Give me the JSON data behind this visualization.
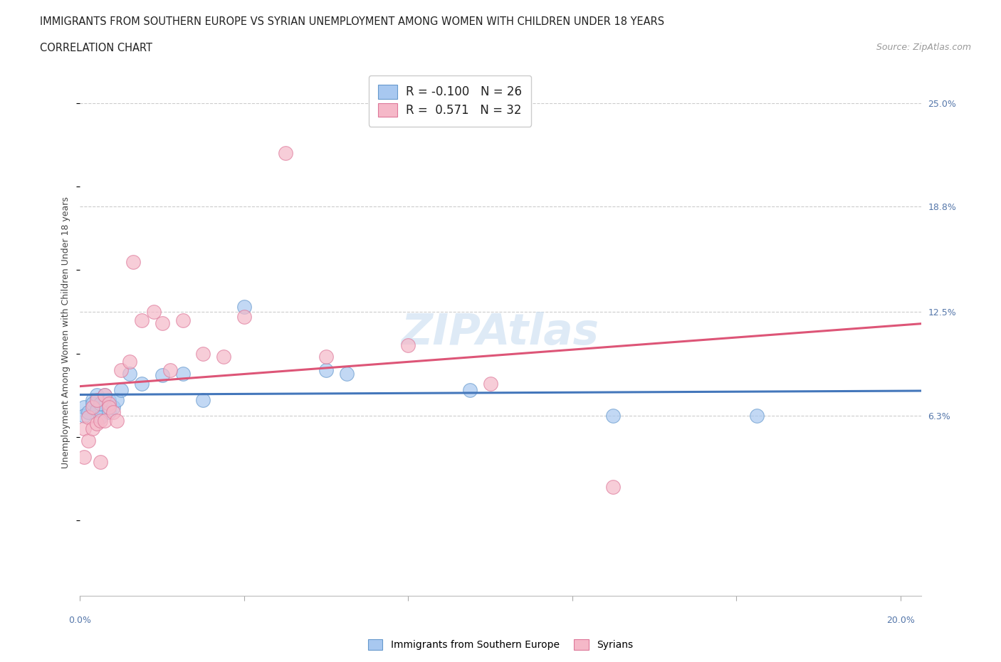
{
  "title_line1": "IMMIGRANTS FROM SOUTHERN EUROPE VS SYRIAN UNEMPLOYMENT AMONG WOMEN WITH CHILDREN UNDER 18 YEARS",
  "title_line2": "CORRELATION CHART",
  "source": "Source: ZipAtlas.com",
  "ylabel": "Unemployment Among Women with Children Under 18 years",
  "xlim": [
    0.0,
    0.205
  ],
  "ylim": [
    -0.045,
    0.27
  ],
  "ytick_vals": [
    0.063,
    0.125,
    0.188,
    0.25
  ],
  "ytick_labels": [
    "6.3%",
    "12.5%",
    "18.8%",
    "25.0%"
  ],
  "xtick_vals": [
    0.0,
    0.04,
    0.08,
    0.12,
    0.16,
    0.2
  ],
  "bg_color": "#ffffff",
  "grid_color": "#cccccc",
  "watermark": "ZIPAtlas",
  "blue_color": "#a8c8f0",
  "blue_edge": "#6699cc",
  "blue_line": "#4477bb",
  "pink_color": "#f5b8c8",
  "pink_edge": "#dd7799",
  "pink_line": "#dd5577",
  "series_blue": {
    "name": "Immigrants from Southern Europe",
    "R": -0.1,
    "N": 26,
    "x": [
      0.001,
      0.001,
      0.002,
      0.003,
      0.003,
      0.004,
      0.004,
      0.005,
      0.005,
      0.006,
      0.007,
      0.007,
      0.008,
      0.009,
      0.01,
      0.012,
      0.015,
      0.02,
      0.025,
      0.03,
      0.04,
      0.06,
      0.065,
      0.095,
      0.13,
      0.165
    ],
    "y": [
      0.068,
      0.063,
      0.065,
      0.072,
      0.07,
      0.066,
      0.075,
      0.062,
      0.07,
      0.075,
      0.065,
      0.072,
      0.068,
      0.072,
      0.078,
      0.088,
      0.082,
      0.087,
      0.088,
      0.072,
      0.128,
      0.09,
      0.088,
      0.078,
      0.063,
      0.063
    ]
  },
  "series_pink": {
    "name": "Syrians",
    "R": 0.571,
    "N": 32,
    "x": [
      0.001,
      0.001,
      0.002,
      0.002,
      0.003,
      0.003,
      0.004,
      0.004,
      0.005,
      0.005,
      0.006,
      0.006,
      0.007,
      0.007,
      0.008,
      0.009,
      0.01,
      0.012,
      0.013,
      0.015,
      0.018,
      0.02,
      0.022,
      0.025,
      0.03,
      0.035,
      0.04,
      0.05,
      0.06,
      0.08,
      0.1,
      0.13
    ],
    "y": [
      0.055,
      0.038,
      0.062,
      0.048,
      0.068,
      0.055,
      0.072,
      0.058,
      0.06,
      0.035,
      0.075,
      0.06,
      0.07,
      0.068,
      0.065,
      0.06,
      0.09,
      0.095,
      0.155,
      0.12,
      0.125,
      0.118,
      0.09,
      0.12,
      0.1,
      0.098,
      0.122,
      0.22,
      0.098,
      0.105,
      0.082,
      0.02
    ]
  }
}
